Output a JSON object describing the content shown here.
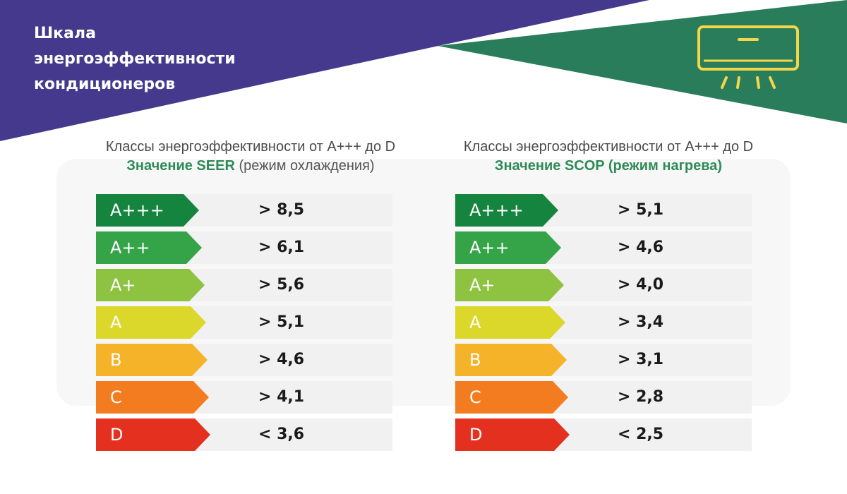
{
  "title_lines": [
    "Шкала",
    "энергоэффективности",
    "кондиционеров"
  ],
  "colors": {
    "purple": "#44398c",
    "green": "#2a7d5b",
    "icon": "#f5d64a",
    "accent_text": "#2e8b57"
  },
  "icon": "air-conditioner-icon",
  "columns": [
    {
      "line1": "Классы энергоэффективности от А+++ до D",
      "line2_strong": "Значение SEER",
      "line2_rest": " (режим охлаждения)",
      "rows": [
        {
          "cls": "A+++",
          "value": "> 8,5",
          "color": "#15843f"
        },
        {
          "cls": "A++",
          "value": "> 6,1",
          "color": "#35a448"
        },
        {
          "cls": "A+",
          "value": "> 5,6",
          "color": "#8dc341"
        },
        {
          "cls": "A",
          "value": "> 5,1",
          "color": "#dbd72b"
        },
        {
          "cls": "B",
          "value": "> 4,6",
          "color": "#f5b32a"
        },
        {
          "cls": "C",
          "value": "> 4,1",
          "color": "#f47c20"
        },
        {
          "cls": "D",
          "value": "< 3,6",
          "color": "#e3301f"
        }
      ]
    },
    {
      "line1": "Классы энергоэффективности от А+++ до D",
      "line2_strong": "Значение SCOP (режим нагрева)",
      "line2_rest": "",
      "rows": [
        {
          "cls": "A+++",
          "value": "> 5,1",
          "color": "#15843f"
        },
        {
          "cls": "A++",
          "value": "> 4,6",
          "color": "#35a448"
        },
        {
          "cls": "A+",
          "value": "> 4,0",
          "color": "#8dc341"
        },
        {
          "cls": "A",
          "value": "> 3,4",
          "color": "#dbd72b"
        },
        {
          "cls": "B",
          "value": "> 3,1",
          "color": "#f5b32a"
        },
        {
          "cls": "C",
          "value": "> 2,8",
          "color": "#f47c20"
        },
        {
          "cls": "D",
          "value": "< 2,5",
          "color": "#e3301f"
        }
      ]
    }
  ]
}
